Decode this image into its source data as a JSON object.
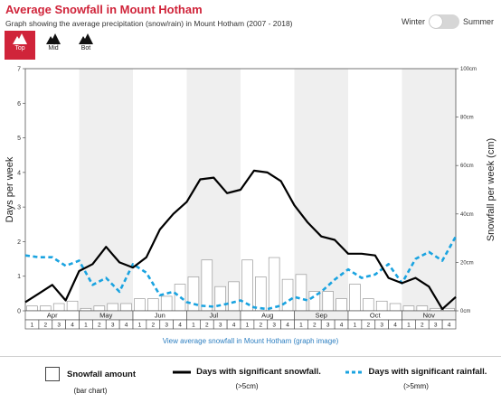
{
  "header": {
    "title": "Average Snowfall in Mount Hotham",
    "subtitle": "Graph showing the average precipitation (snow/rain) in Mount Hotham (2007 - 2018)",
    "winter_label": "Winter",
    "summer_label": "Summer"
  },
  "elevation_tabs": [
    {
      "label": "Top",
      "active": true
    },
    {
      "label": "Mid",
      "active": false
    },
    {
      "label": "Bot",
      "active": false
    }
  ],
  "link_text": "View average snowfall in Mount Hotham (graph image)",
  "legend": {
    "snowfall_amount": "Snowfall amount",
    "snowfall_amount_sub": "(bar chart)",
    "snow_days": "Days with significant snowfall.",
    "snow_days_sub": "(>5cm)",
    "rain_days": "Days with significant rainfall.",
    "rain_days_sub": "(>5mm)"
  },
  "colors": {
    "accent": "#d0243a",
    "rain": "#1aa3e0",
    "snow_line": "#000000",
    "band": "#efefef",
    "link": "#2d7fc1"
  },
  "chart_data": {
    "type": "bar",
    "ylabel": "Days per week",
    "y2label": "Snowfall per week (cm)",
    "ylim": [
      0,
      7
    ],
    "y2lim": [
      0,
      100
    ],
    "yticks": [
      "0",
      "1",
      "2",
      "3",
      "4",
      "5",
      "6",
      "7"
    ],
    "y2ticks": [
      "0cm",
      "20cm",
      "40cm",
      "60cm",
      "80cm",
      "100cm"
    ],
    "months": [
      "Apr",
      "May",
      "Jun",
      "Jul",
      "Aug",
      "Sep",
      "Oct",
      "Nov"
    ],
    "week_labels": [
      "1",
      "2",
      "3",
      "4"
    ],
    "shaded_months": [
      "May",
      "Jul",
      "Sep",
      "Nov"
    ],
    "series": [
      {
        "name": "Snowfall amount",
        "kind": "bar",
        "axis": "right",
        "values": [
          2,
          2,
          3,
          4,
          1,
          2,
          3,
          3,
          5,
          5,
          6,
          11,
          14,
          21,
          10,
          12,
          21,
          14,
          22,
          13,
          15,
          8,
          8,
          5,
          11,
          5,
          4,
          3,
          2,
          2,
          1,
          1
        ]
      },
      {
        "name": "Days with significant snowfall.",
        "kind": "line",
        "axis": "left",
        "values": [
          0.25,
          0.5,
          0.75,
          0.3,
          1.15,
          1.35,
          1.85,
          1.4,
          1.25,
          1.55,
          2.35,
          2.8,
          3.15,
          3.8,
          3.85,
          3.4,
          3.5,
          4.05,
          4.0,
          3.75,
          3.05,
          2.55,
          2.15,
          2.05,
          1.65,
          1.65,
          1.6,
          0.95,
          0.8,
          0.95,
          0.7,
          0.05,
          0.4
        ]
      },
      {
        "name": "Days with significant rainfall.",
        "kind": "line",
        "axis": "left",
        "values": [
          1.6,
          1.55,
          1.55,
          1.3,
          1.45,
          0.75,
          0.95,
          0.55,
          1.35,
          1.1,
          0.45,
          0.55,
          0.25,
          0.15,
          0.12,
          0.2,
          0.3,
          0.1,
          0.05,
          0.15,
          0.4,
          0.3,
          0.55,
          0.9,
          1.2,
          0.95,
          1.05,
          1.35,
          0.8,
          1.5,
          1.7,
          1.45,
          2.15
        ]
      }
    ]
  }
}
